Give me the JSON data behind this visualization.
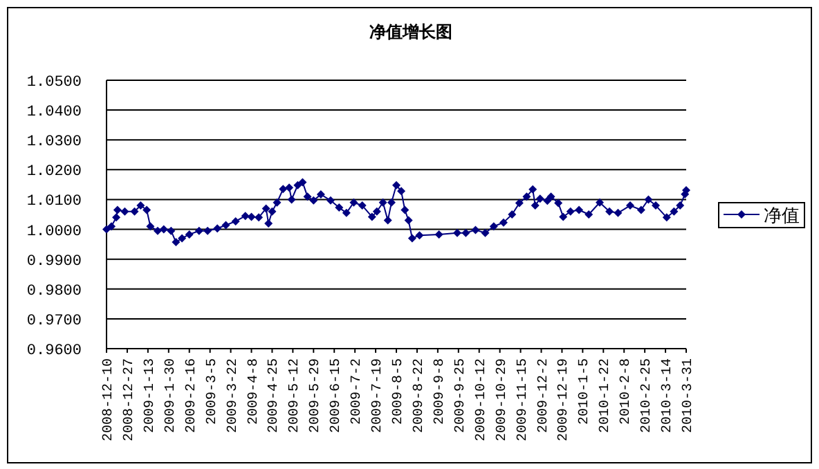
{
  "chart_data": {
    "type": "line",
    "title": "净值增长图",
    "x": [
      "2008-12-10",
      "2008-12-14",
      "2008-12-18",
      "2008-12-19",
      "2008-12-25",
      "2009-01-02",
      "2009-01-07",
      "2009-01-12",
      "2009-01-15",
      "2009-01-21",
      "2009-01-26",
      "2009-02-01",
      "2009-02-05",
      "2009-02-10",
      "2009-02-16",
      "2009-02-24",
      "2009-03-03",
      "2009-03-11",
      "2009-03-18",
      "2009-03-26",
      "2009-04-03",
      "2009-04-08",
      "2009-04-14",
      "2009-04-20",
      "2009-04-22",
      "2009-04-25",
      "2009-04-29",
      "2009-05-04",
      "2009-05-09",
      "2009-05-11",
      "2009-05-16",
      "2009-05-20",
      "2009-05-24",
      "2009-05-29",
      "2009-06-04",
      "2009-06-12",
      "2009-06-19",
      "2009-06-25",
      "2009-07-01",
      "2009-07-08",
      "2009-07-16",
      "2009-07-20",
      "2009-07-25",
      "2009-07-29",
      "2009-08-01",
      "2009-08-05",
      "2009-08-09",
      "2009-08-12",
      "2009-08-15",
      "2009-08-18",
      "2009-08-24",
      "2009-09-09",
      "2009-09-24",
      "2009-10-01",
      "2009-10-09",
      "2009-10-17",
      "2009-10-24",
      "2009-11-01",
      "2009-11-08",
      "2009-11-14",
      "2009-11-20",
      "2009-11-25",
      "2009-11-27",
      "2009-12-01",
      "2009-12-07",
      "2009-12-10",
      "2009-12-16",
      "2009-12-20",
      "2009-12-26",
      "2010-01-02",
      "2010-01-10",
      "2010-01-19",
      "2010-01-27",
      "2010-02-03",
      "2010-02-13",
      "2010-02-22",
      "2010-02-28",
      "2010-03-06",
      "2010-03-15",
      "2010-03-21",
      "2010-03-26",
      "2010-03-30",
      "2010-03-31"
    ],
    "series": [
      {
        "name": "净值",
        "color": "#000080",
        "values": [
          1.0,
          1.001,
          1.004,
          1.0065,
          1.006,
          1.006,
          1.008,
          1.0065,
          1.001,
          0.9995,
          1.0,
          0.9995,
          0.9957,
          0.997,
          0.9983,
          0.9995,
          0.9995,
          1.0003,
          1.0014,
          1.0027,
          1.0045,
          1.0042,
          1.004,
          1.007,
          1.002,
          1.006,
          1.009,
          1.0135,
          1.014,
          1.01,
          1.0148,
          1.0158,
          1.011,
          1.0097,
          1.0117,
          1.0097,
          1.0073,
          1.0055,
          1.009,
          1.008,
          1.0042,
          1.006,
          1.009,
          1.003,
          1.009,
          1.0148,
          1.0128,
          1.0065,
          1.003,
          0.997,
          0.998,
          0.9983,
          0.9988,
          0.9988,
          0.9998,
          0.9988,
          1.001,
          1.0023,
          1.005,
          1.0088,
          1.011,
          1.0134,
          1.008,
          1.0103,
          1.0096,
          1.011,
          1.0088,
          1.0042,
          1.006,
          1.0065,
          1.005,
          1.009,
          1.006,
          1.0055,
          1.008,
          1.0065,
          1.01,
          1.008,
          1.004,
          1.006,
          1.008,
          1.0118,
          1.0131
        ]
      }
    ],
    "ylim": [
      0.96,
      1.05
    ],
    "yticks": [
      {
        "value": 0.96,
        "label": "0.9600"
      },
      {
        "value": 0.97,
        "label": "0.9700"
      },
      {
        "value": 0.98,
        "label": "0.9800"
      },
      {
        "value": 0.99,
        "label": "0.9900"
      },
      {
        "value": 1.0,
        "label": "1.0000"
      },
      {
        "value": 1.01,
        "label": "1.0100"
      },
      {
        "value": 1.02,
        "label": "1.0200"
      },
      {
        "value": 1.03,
        "label": "1.0300"
      },
      {
        "value": 1.04,
        "label": "1.0400"
      },
      {
        "value": 1.05,
        "label": "1.0500"
      }
    ],
    "xlim": [
      "2008-12-10",
      "2010-03-31"
    ],
    "xticks": [
      {
        "value": "2008-12-10",
        "label": "2008-12-10"
      },
      {
        "value": "2008-12-27",
        "label": "2008-12-27"
      },
      {
        "value": "2009-01-13",
        "label": "2009-1-13"
      },
      {
        "value": "2009-01-30",
        "label": "2009-1-30"
      },
      {
        "value": "2009-02-16",
        "label": "2009-2-16"
      },
      {
        "value": "2009-03-05",
        "label": "2009-3-5"
      },
      {
        "value": "2009-03-22",
        "label": "2009-3-22"
      },
      {
        "value": "2009-04-08",
        "label": "2009-4-8"
      },
      {
        "value": "2009-04-25",
        "label": "2009-4-25"
      },
      {
        "value": "2009-05-12",
        "label": "2009-5-12"
      },
      {
        "value": "2009-05-29",
        "label": "2009-5-29"
      },
      {
        "value": "2009-06-15",
        "label": "2009-6-15"
      },
      {
        "value": "2009-07-02",
        "label": "2009-7-2"
      },
      {
        "value": "2009-07-19",
        "label": "2009-7-19"
      },
      {
        "value": "2009-08-05",
        "label": "2009-8-5"
      },
      {
        "value": "2009-08-22",
        "label": "2009-8-22"
      },
      {
        "value": "2009-09-08",
        "label": "2009-9-8"
      },
      {
        "value": "2009-09-25",
        "label": "2009-9-25"
      },
      {
        "value": "2009-10-12",
        "label": "2009-10-12"
      },
      {
        "value": "2009-10-29",
        "label": "2009-10-29"
      },
      {
        "value": "2009-11-15",
        "label": "2009-11-15"
      },
      {
        "value": "2009-12-02",
        "label": "2009-12-2"
      },
      {
        "value": "2009-12-19",
        "label": "2009-12-19"
      },
      {
        "value": "2010-01-05",
        "label": "2010-1-5"
      },
      {
        "value": "2010-01-22",
        "label": "2010-1-22"
      },
      {
        "value": "2010-02-08",
        "label": "2010-2-8"
      },
      {
        "value": "2010-02-25",
        "label": "2010-2-25"
      },
      {
        "value": "2010-03-14",
        "label": "2010-3-14"
      },
      {
        "value": "2010-03-31",
        "label": "2010-3-31"
      }
    ],
    "grid": "y",
    "legend": "right",
    "marker": "diamond",
    "line_style": "solid"
  }
}
